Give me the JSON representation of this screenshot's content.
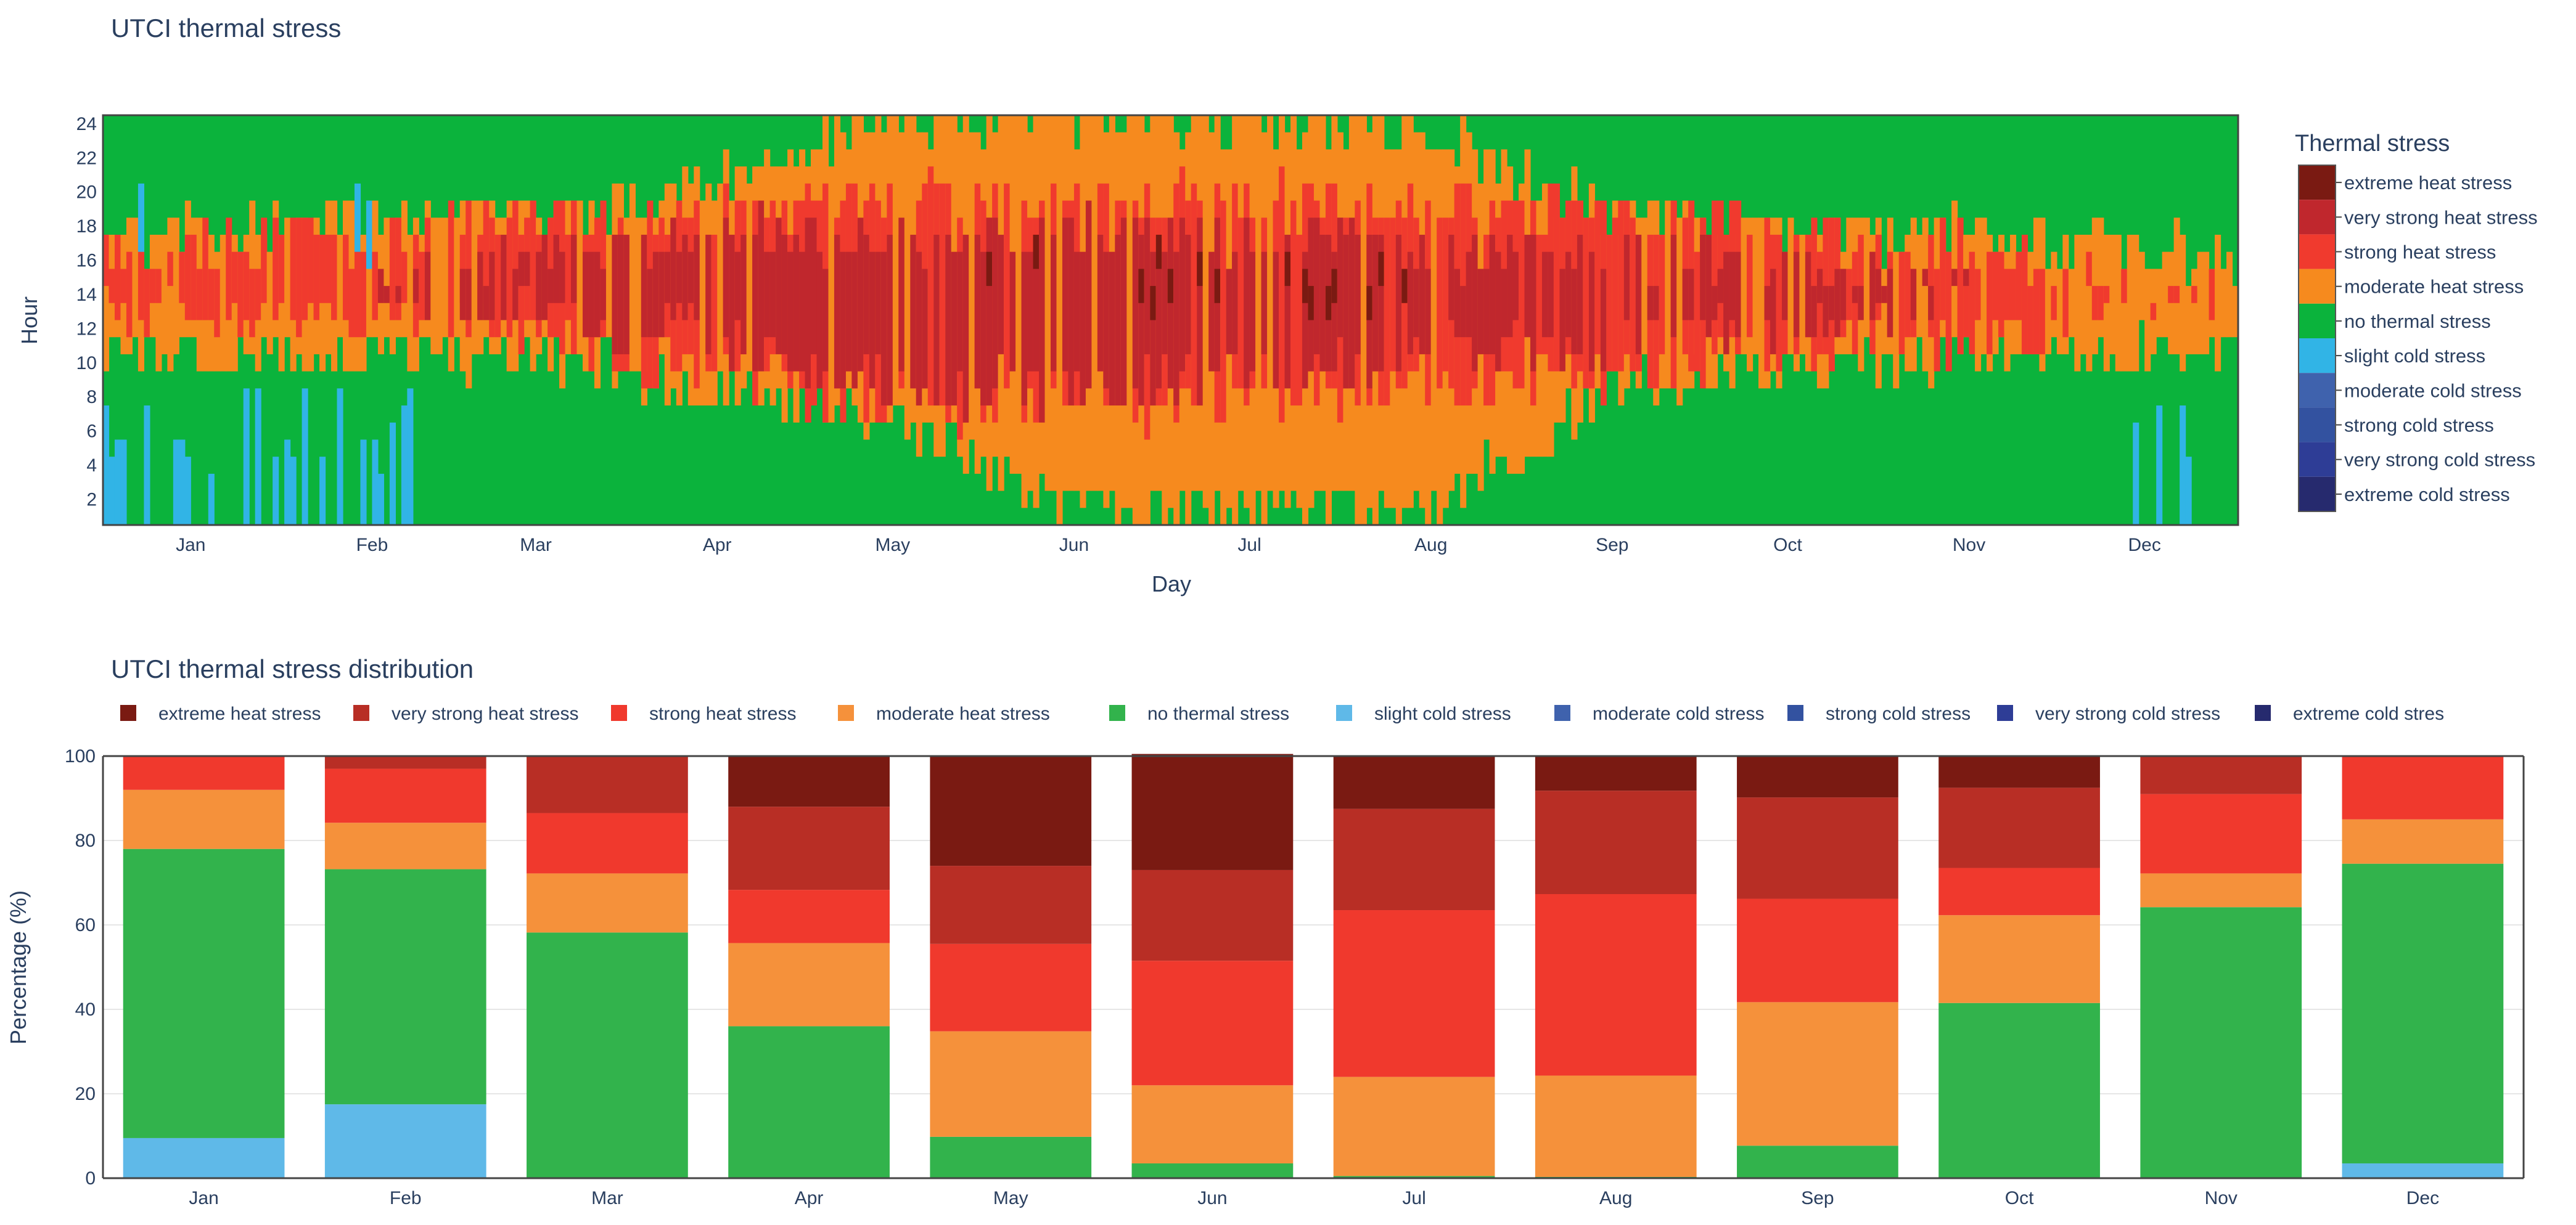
{
  "chart_data": [
    {
      "type": "heatmap",
      "title": "UTCI thermal stress",
      "xlabel": "Day",
      "ylabel": "Hour",
      "y_ticks": [
        "2",
        "4",
        "6",
        "8",
        "10",
        "12",
        "14",
        "16",
        "18",
        "20",
        "22",
        "24"
      ],
      "y_range": [
        1,
        24
      ],
      "x_range_days": [
        1,
        365
      ],
      "months": [
        "Jan",
        "Feb",
        "Mar",
        "Apr",
        "May",
        "Jun",
        "Jul",
        "Aug",
        "Sep",
        "Oct",
        "Nov",
        "Dec"
      ],
      "legend_title": "Thermal stress",
      "categories": [
        "extreme heat stress",
        "very strong heat stress",
        "strong heat stress",
        "moderate heat stress",
        "no thermal stress",
        "slight cold stress",
        "moderate cold stress",
        "strong cold stress",
        "very strong cold stress",
        "extreme cold stress"
      ],
      "colors": {
        "extreme heat stress": "#7a1a12",
        "very strong heat stress": "#c0272d",
        "strong heat stress": "#f03a2e",
        "moderate heat stress": "#f68a1e",
        "no thermal stress": "#0bb33c",
        "slight cold stress": "#31b4e6",
        "moderate cold stress": "#3f62ad",
        "strong cold stress": "#3352a0",
        "very strong cold stress": "#2e3d96",
        "extreme cold stress": "#262a6e"
      },
      "daily_windows_note": "Approximate daily hour ranges per month (start-end hours)",
      "hour_windows": [
        {
          "month": "Jan",
          "moderate": [
            10,
            17
          ],
          "strong": [
            12,
            16
          ],
          "cold_night": [
            1,
            8
          ]
        },
        {
          "month": "Feb",
          "moderate": [
            10,
            18
          ],
          "strong": [
            12,
            17
          ],
          "cold_night": [
            1,
            8
          ]
        },
        {
          "month": "Mar",
          "moderate": [
            10,
            18
          ],
          "strong": [
            11,
            18
          ],
          "very_strong": [
            12,
            16
          ]
        },
        {
          "month": "Apr",
          "moderate": [
            8,
            20
          ],
          "strong": [
            9,
            18
          ],
          "very_strong": [
            11,
            17
          ]
        },
        {
          "month": "May",
          "moderate": [
            6,
            24
          ],
          "strong": [
            7,
            19
          ],
          "very_strong": [
            8,
            17
          ]
        },
        {
          "month": "Jun",
          "moderate": [
            1,
            24
          ],
          "strong": [
            7,
            19
          ],
          "very_strong": [
            8,
            17
          ]
        },
        {
          "month": "Jul",
          "moderate": [
            1,
            24
          ],
          "strong": [
            7,
            19
          ],
          "very_strong": [
            9,
            17
          ]
        },
        {
          "month": "Aug",
          "moderate": [
            1,
            23
          ],
          "strong": [
            8,
            19
          ],
          "very_strong": [
            10,
            16
          ]
        },
        {
          "month": "Sep",
          "moderate": [
            8,
            18
          ],
          "strong": [
            9,
            18
          ],
          "very_strong": [
            10,
            16
          ]
        },
        {
          "month": "Oct",
          "moderate": [
            9,
            17
          ],
          "strong": [
            10,
            17
          ],
          "very_strong": [
            12,
            15
          ]
        },
        {
          "month": "Nov",
          "moderate": [
            10,
            17
          ],
          "strong": [
            11,
            16
          ]
        },
        {
          "month": "Dec",
          "moderate": [
            10,
            16
          ],
          "cold_night": [
            4,
            8
          ]
        }
      ]
    },
    {
      "type": "bar",
      "stacked": true,
      "title": "UTCI thermal stress distribution",
      "xlabel": "",
      "ylabel": "Percentage (%)",
      "ylim": [
        0,
        100
      ],
      "y_ticks": [
        "0",
        "20",
        "40",
        "60",
        "80",
        "100"
      ],
      "categories": [
        "Jan",
        "Feb",
        "Mar",
        "Apr",
        "May",
        "Jun",
        "Jul",
        "Aug",
        "Sep",
        "Oct",
        "Nov",
        "Dec"
      ],
      "series": [
        {
          "name": "extreme heat stress",
          "color": "#7a1a12",
          "values": [
            0,
            0,
            0,
            12,
            26,
            27.5,
            12.5,
            8.2,
            9.8,
            7.5,
            0,
            0
          ]
        },
        {
          "name": "very strong heat stress",
          "color": "#b82e25",
          "values": [
            0,
            3,
            13.5,
            19.7,
            18.5,
            21.5,
            24,
            24.5,
            24,
            19,
            9,
            0
          ]
        },
        {
          "name": "strong heat stress",
          "color": "#f0392d",
          "values": [
            8,
            12.8,
            14.3,
            12.6,
            20.7,
            29.5,
            39.5,
            43,
            24.5,
            11.2,
            18.8,
            15
          ]
        },
        {
          "name": "moderate heat stress",
          "color": "#f5913b",
          "values": [
            14,
            11,
            14,
            19.7,
            25,
            18.5,
            23.5,
            24,
            34,
            20.8,
            8,
            10.5
          ]
        },
        {
          "name": "no thermal stress",
          "color": "#32b34c",
          "values": [
            68.5,
            55.7,
            58.2,
            36,
            9.8,
            3.5,
            0.5,
            0.3,
            7.7,
            41.5,
            64.2,
            71
          ]
        },
        {
          "name": "slight cold stress",
          "color": "#5fb9e8",
          "values": [
            9.5,
            17.5,
            0,
            0,
            0,
            0,
            0,
            0,
            0,
            0,
            0,
            3.5
          ]
        },
        {
          "name": "moderate cold stress",
          "color": "#3f62ad",
          "values": [
            0,
            0,
            0,
            0,
            0,
            0,
            0,
            0,
            0,
            0,
            0,
            0
          ]
        },
        {
          "name": "strong cold stress",
          "color": "#3352a0",
          "values": [
            0,
            0,
            0,
            0,
            0,
            0,
            0,
            0,
            0,
            0,
            0,
            0
          ]
        },
        {
          "name": "very strong cold stress",
          "color": "#2e3d96",
          "values": [
            0,
            0,
            0,
            0,
            0,
            0,
            0,
            0,
            0,
            0,
            0,
            0
          ]
        },
        {
          "name": "extreme cold stress",
          "color": "#262a6e",
          "values": [
            0,
            0,
            0,
            0,
            0,
            0,
            0,
            0,
            0,
            0,
            0,
            0
          ]
        }
      ],
      "legend": [
        "extreme heat stress",
        "very strong heat stress",
        "strong heat stress",
        "moderate heat stress",
        "no thermal stress",
        "slight cold stress",
        "moderate cold stress",
        "strong cold stress",
        "very strong cold stress",
        "extreme cold stress"
      ],
      "legend_last_visible": "extreme cold stres"
    }
  ]
}
